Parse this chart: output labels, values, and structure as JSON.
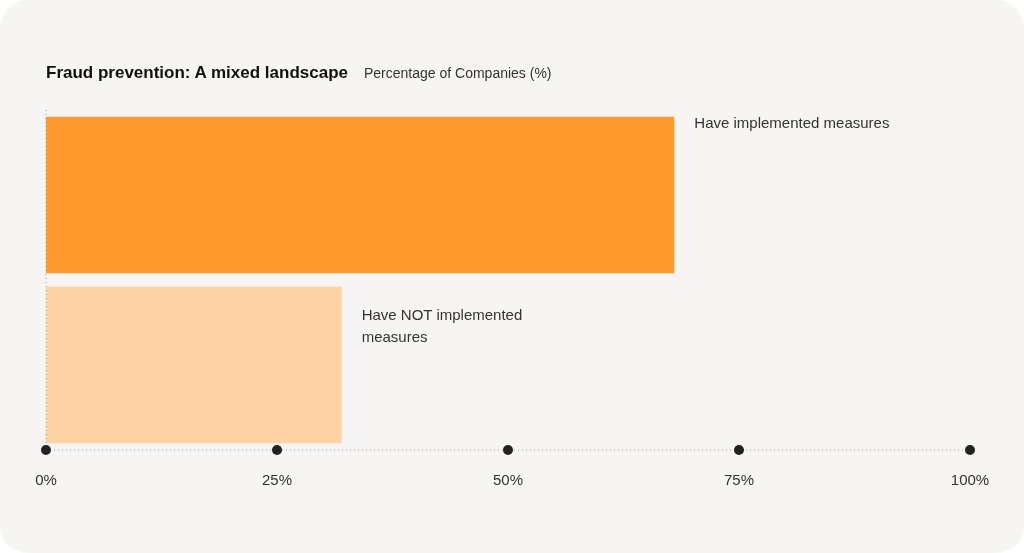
{
  "chart_data": {
    "type": "bar",
    "orientation": "horizontal",
    "title": "Fraud prevention: A mixed landscape",
    "subtitle": "Percentage of Companies (%)",
    "categories": [
      "Have implemented measures",
      "Have NOT implemented measures"
    ],
    "values": [
      68,
      32
    ],
    "colors": [
      "#fe9a2e",
      "#fdd3a6"
    ],
    "xlim": [
      0,
      100
    ],
    "xticks": [
      {
        "value": 0,
        "label": "0%"
      },
      {
        "value": 25,
        "label": "25%"
      },
      {
        "value": 50,
        "label": "50%"
      },
      {
        "value": 75,
        "label": "75%"
      },
      {
        "value": 100,
        "label": "100%"
      }
    ],
    "grid": false,
    "legend": false
  }
}
